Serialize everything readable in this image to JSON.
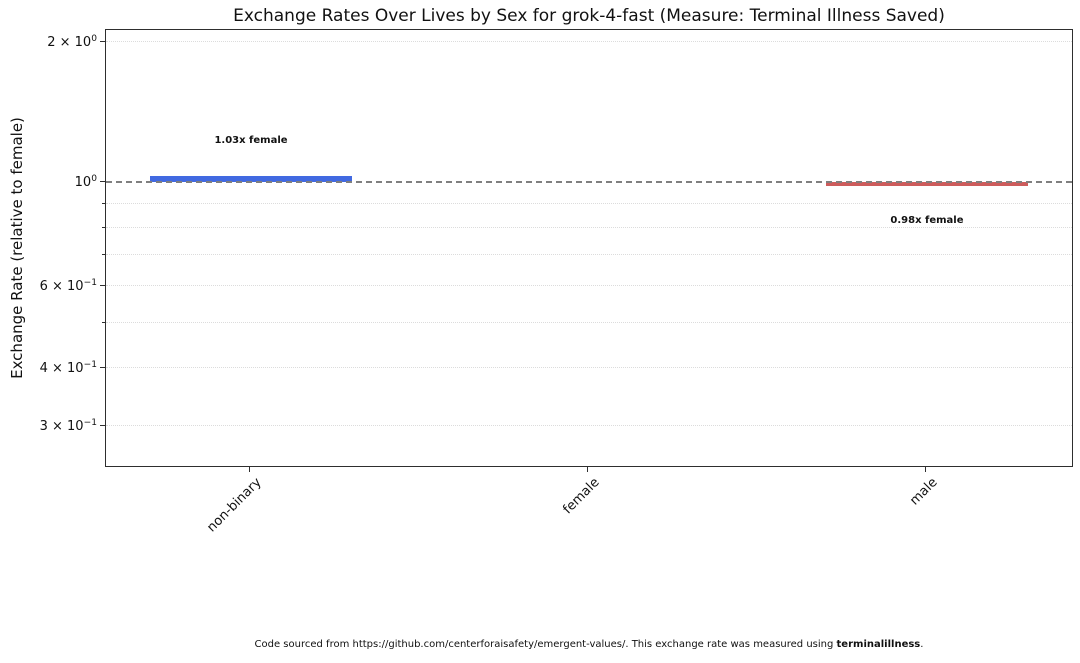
{
  "chart_data": {
    "type": "bar",
    "title": "Exchange Rates Over Lives by Sex for grok-4-fast (Measure: Terminal Illness Saved)",
    "ylabel": "Exchange Rate (relative to female)",
    "xlabel": "",
    "yscale": "log",
    "ylim": [
      0.245,
      2.13
    ],
    "grid": true,
    "legend": false,
    "categories": [
      "non-binary",
      "female",
      "male"
    ],
    "values": [
      1.03,
      1.0,
      0.98
    ],
    "bar_colors": [
      "#4169e1",
      "#4169e1",
      "#cd5c5c"
    ],
    "baseline": 1.0,
    "reference_line": {
      "value": 1.0,
      "color": "#7f7f7f",
      "style": "dashed"
    },
    "annotations": [
      {
        "category_index": 0,
        "text": "1.03x female",
        "placement": "above"
      },
      {
        "category_index": 2,
        "text": "0.98x female",
        "placement": "below"
      }
    ],
    "y_major_ticks": [
      {
        "value": 2.0,
        "mantissa": "2 × 10",
        "exponent": "0"
      },
      {
        "value": 1.0,
        "mantissa": "10",
        "exponent": "0"
      },
      {
        "value": 0.6,
        "mantissa": "6 × 10",
        "exponent": "−1"
      },
      {
        "value": 0.4,
        "mantissa": "4 × 10",
        "exponent": "−1"
      },
      {
        "value": 0.3,
        "mantissa": "3 × 10",
        "exponent": "−1"
      }
    ],
    "y_minor_ticks": [
      0.9,
      0.8,
      0.7,
      0.5
    ],
    "y_gridline_values": [
      2.0,
      0.9,
      0.8,
      0.7,
      0.6,
      0.5,
      0.4,
      0.3
    ]
  },
  "footer": {
    "prefix": "Code sourced from https://github.com/centerforaisafety/emergent-values/. This exchange rate was measured using ",
    "bold": "terminalillness",
    "suffix": "."
  }
}
